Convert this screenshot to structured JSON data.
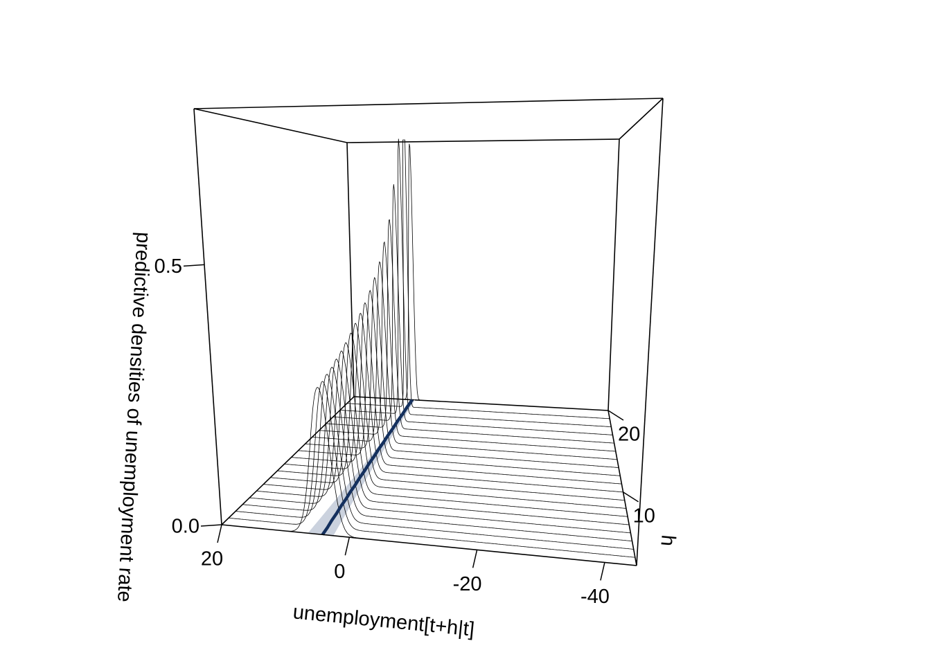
{
  "chart_data": {
    "type": "3d-density-ridges",
    "title": "",
    "xlabel": "unemployment[t+h|t]",
    "ylabel": "h",
    "zlabel": "predictive densities of unemployment rate",
    "x_ticks": [
      "20",
      "0",
      "-20",
      "-40"
    ],
    "x_tick_values": [
      20,
      0,
      -20,
      -40
    ],
    "y_ticks": [
      "10",
      "20"
    ],
    "y_tick_values": [
      10,
      20
    ],
    "z_ticks": [
      "0.0",
      "0.5"
    ],
    "z_tick_values": [
      0.0,
      0.5
    ],
    "xlim": [
      20,
      -45
    ],
    "ylim": [
      1,
      20
    ],
    "zlim": [
      0,
      0.8
    ],
    "horizons": [
      1,
      2,
      3,
      4,
      5,
      6,
      7,
      8,
      9,
      10,
      11,
      12,
      13,
      14,
      15,
      16,
      17,
      18,
      19,
      20
    ],
    "density_mean": [
      4.2,
      4.2,
      4.3,
      4.3,
      4.4,
      4.4,
      4.5,
      4.5,
      4.6,
      4.6,
      4.7,
      4.7,
      4.8,
      4.8,
      4.9,
      4.9,
      5.0,
      5.0,
      5.1,
      5.1
    ],
    "density_sd": [
      1.45,
      1.43,
      1.4,
      1.37,
      1.33,
      1.29,
      1.25,
      1.2,
      1.15,
      1.1,
      1.05,
      0.99,
      0.93,
      0.86,
      0.78,
      0.7,
      0.6,
      0.5,
      0.38,
      0.5
    ],
    "band": {
      "lower": [
        2.5,
        2.6,
        2.7,
        2.8,
        2.9,
        3.0,
        3.1,
        3.2,
        3.3,
        3.4,
        3.5,
        3.6,
        3.7,
        3.8,
        3.9,
        4.0,
        4.1,
        4.2,
        4.3,
        4.4
      ],
      "upper": [
        6.5,
        6.4,
        6.3,
        6.2,
        6.1,
        6.0,
        5.9,
        5.8,
        5.7,
        5.6,
        5.5,
        5.4,
        5.3,
        5.2,
        5.1,
        5.0,
        4.9,
        4.8,
        4.7,
        4.6
      ]
    },
    "colors": {
      "mean_line": "#14305e",
      "band": "#cbd2de",
      "ridge": "#000000"
    },
    "grid": false,
    "legend": "none"
  }
}
